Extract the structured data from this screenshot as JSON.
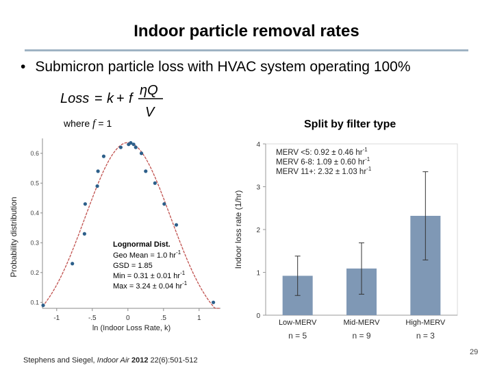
{
  "slide": {
    "title": "Indoor particle removal rates",
    "bullet": "Submicron particle loss with HVAC system operating 100%",
    "bullet_marker": "•",
    "formula": {
      "lhs": "Loss",
      "eq": "=",
      "k": "k",
      "plus": "+",
      "f": "f",
      "numerator": "ηQ",
      "denominator": "V"
    },
    "where_prefix": "where ",
    "where_var": "f",
    "where_suffix": " = 1",
    "split_title": "Split by filter type",
    "citation": {
      "authors": "Stephens and Siegel, ",
      "journal": "Indoor Air",
      "year": " 2012",
      "issue": " 22(6):501-512"
    },
    "page_number": "29"
  },
  "colors": {
    "rule": "#9fb3c3",
    "bar": "#7f98b5",
    "curve": "#c0504d",
    "dot": "#2d5f8a"
  },
  "chart_data": [
    {
      "type": "scatter",
      "title": "",
      "xlabel": "ln (Indoor Loss Rate, k)",
      "ylabel": "Probability distribution",
      "xlim": [
        -1.2,
        1.3
      ],
      "ylim": [
        0.08,
        0.65
      ],
      "x_ticks": [
        -1,
        -0.5,
        0,
        0.5,
        1
      ],
      "x_tick_labels": [
        "-1",
        "-.5",
        "0",
        ".5",
        "1"
      ],
      "y_ticks": [
        0.1,
        0.2,
        0.3,
        0.4,
        0.5,
        0.6
      ],
      "y_tick_labels": [
        "0.1",
        "0.2",
        "0.3",
        "0.4",
        "0.5",
        "0.6"
      ],
      "points": {
        "x": [
          -1.19,
          -0.78,
          -0.61,
          -0.6,
          -0.43,
          -0.42,
          -0.34,
          -0.1,
          0.01,
          0.04,
          0.08,
          0.11,
          0.19,
          0.25,
          0.38,
          0.51,
          0.68,
          1.2
        ],
        "y": [
          0.09,
          0.23,
          0.33,
          0.43,
          0.49,
          0.54,
          0.59,
          0.62,
          0.63,
          0.635,
          0.63,
          0.62,
          0.6,
          0.54,
          0.5,
          0.43,
          0.36,
          0.1
        ]
      },
      "curve": {
        "name": "Lognormal Dist.",
        "peak_x": 0.0,
        "peak_y": 0.636,
        "sigma": 0.6
      },
      "annotation": {
        "title": "Lognormal Dist.",
        "lines": [
          "Geo Mean = 1.0 hr",
          "GSD = 1.85",
          "Min = 0.31 ± 0.01 hr",
          "Max = 3.24 ± 0.04 hr"
        ],
        "superscripts": [
          "-1",
          "",
          "-1",
          "-1"
        ]
      }
    },
    {
      "type": "bar",
      "title": "Split by filter type",
      "ylabel": "Indoor loss rate (1/hr)",
      "ylim": [
        0,
        4
      ],
      "y_ticks": [
        0,
        1,
        2,
        3,
        4
      ],
      "y_tick_labels": [
        "0",
        "1",
        "2",
        "3",
        "4"
      ],
      "categories": [
        "Low-MERV",
        "Mid-MERV",
        "High-MERV"
      ],
      "values": [
        0.92,
        1.09,
        2.32
      ],
      "errors": [
        0.46,
        0.6,
        1.03
      ],
      "counts": [
        "n = 5",
        "n = 9",
        "n = 3"
      ],
      "legend_lines": [
        "MERV <5: 0.92 ± 0.46 hr",
        "MERV 6-8: 1.09 ± 0.60 hr",
        "MERV 11+: 2.32 ± 1.03 hr"
      ],
      "legend_superscript": "-1"
    }
  ]
}
